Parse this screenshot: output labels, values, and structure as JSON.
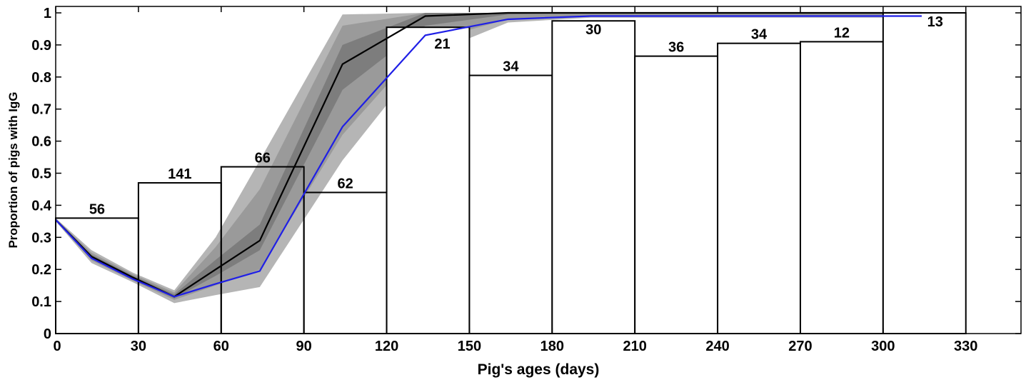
{
  "chart_data": {
    "type": "bar",
    "xlabel": "Pig's ages (days)",
    "ylabel": "Proportion of pigs with IgG",
    "xlim": [
      0,
      350
    ],
    "ylim": [
      0,
      1
    ],
    "x_ticks": [
      0,
      30,
      60,
      90,
      120,
      150,
      180,
      210,
      240,
      270,
      300,
      330
    ],
    "y_ticks": [
      0,
      0.1,
      0.2,
      0.3,
      0.4,
      0.5,
      0.6,
      0.7,
      0.8,
      0.9,
      1
    ],
    "y_tick_labels": [
      "0",
      "0.1",
      "0.2",
      "0.3",
      "0.4",
      "0.5",
      "0.6",
      "0.7",
      "0.8",
      "0.9",
      "1"
    ],
    "bars": [
      {
        "x0": 0,
        "x1": 30,
        "value": 0.36,
        "label": "56"
      },
      {
        "x0": 30,
        "x1": 60,
        "value": 0.47,
        "label": "141"
      },
      {
        "x0": 60,
        "x1": 90,
        "value": 0.52,
        "label": "66"
      },
      {
        "x0": 90,
        "x1": 120,
        "value": 0.44,
        "label": "62"
      },
      {
        "x0": 120,
        "x1": 150,
        "value": 0.955,
        "label": "21"
      },
      {
        "x0": 150,
        "x1": 180,
        "value": 0.805,
        "label": "34"
      },
      {
        "x0": 180,
        "x1": 210,
        "value": 0.975,
        "label": "30"
      },
      {
        "x0": 210,
        "x1": 240,
        "value": 0.865,
        "label": "36"
      },
      {
        "x0": 240,
        "x1": 270,
        "value": 0.905,
        "label": "34"
      },
      {
        "x0": 270,
        "x1": 300,
        "value": 0.91,
        "label": "12"
      },
      {
        "x0": 300,
        "x1": 330,
        "value": 1.0,
        "label": "13"
      }
    ],
    "series": [
      {
        "color": "#000000",
        "x": [
          0,
          13,
          28,
          43,
          58,
          74,
          104,
          134,
          164,
          194,
          224,
          254,
          284,
          314
        ],
        "values": [
          0.355,
          0.24,
          0.175,
          0.115,
          0.2,
          0.29,
          0.84,
          0.99,
          1.0,
          1.0,
          1.0,
          1.0,
          1.0,
          1.0
        ]
      },
      {
        "color": "#1f1fe6",
        "x": [
          0,
          13,
          28,
          43,
          58,
          74,
          104,
          134,
          164,
          194,
          224,
          254,
          284,
          314
        ],
        "values": [
          0.355,
          0.235,
          0.17,
          0.115,
          0.155,
          0.195,
          0.645,
          0.93,
          0.98,
          0.99,
          0.99,
          0.99,
          0.99,
          0.99
        ]
      }
    ],
    "bands": [
      {
        "color": "#b5b5b5",
        "x": [
          0,
          13,
          28,
          43,
          58,
          74,
          104,
          134,
          164,
          194,
          224,
          254,
          284,
          314
        ],
        "lower": [
          0.35,
          0.22,
          0.16,
          0.095,
          0.12,
          0.145,
          0.54,
          0.865,
          0.97,
          0.985,
          0.985,
          0.985,
          0.985,
          0.985
        ],
        "upper": [
          0.36,
          0.26,
          0.19,
          0.135,
          0.3,
          0.54,
          0.995,
          1.0,
          1.0,
          1.0,
          1.0,
          1.0,
          1.0,
          1.0
        ]
      },
      {
        "color": "#9a9a9a",
        "x": [
          0,
          13,
          28,
          43,
          58,
          74,
          104,
          134,
          164,
          194,
          224,
          254,
          284,
          314
        ],
        "lower": [
          0.352,
          0.228,
          0.165,
          0.105,
          0.15,
          0.2,
          0.62,
          0.91,
          0.98,
          0.99,
          0.99,
          0.99,
          0.99,
          0.99
        ],
        "upper": [
          0.358,
          0.252,
          0.185,
          0.128,
          0.27,
          0.45,
          0.96,
          1.0,
          1.0,
          1.0,
          1.0,
          1.0,
          1.0,
          1.0
        ]
      },
      {
        "color": "#7d7d7d",
        "x": [
          0,
          13,
          28,
          43,
          58,
          74,
          104,
          134,
          164,
          194,
          224,
          254,
          284,
          314
        ],
        "lower": [
          0.354,
          0.234,
          0.17,
          0.11,
          0.18,
          0.26,
          0.76,
          0.96,
          0.995,
          1.0,
          1.0,
          1.0,
          1.0,
          1.0
        ],
        "upper": [
          0.356,
          0.246,
          0.18,
          0.122,
          0.23,
          0.34,
          0.9,
          1.0,
          1.0,
          1.0,
          1.0,
          1.0,
          1.0,
          1.0
        ]
      }
    ]
  }
}
